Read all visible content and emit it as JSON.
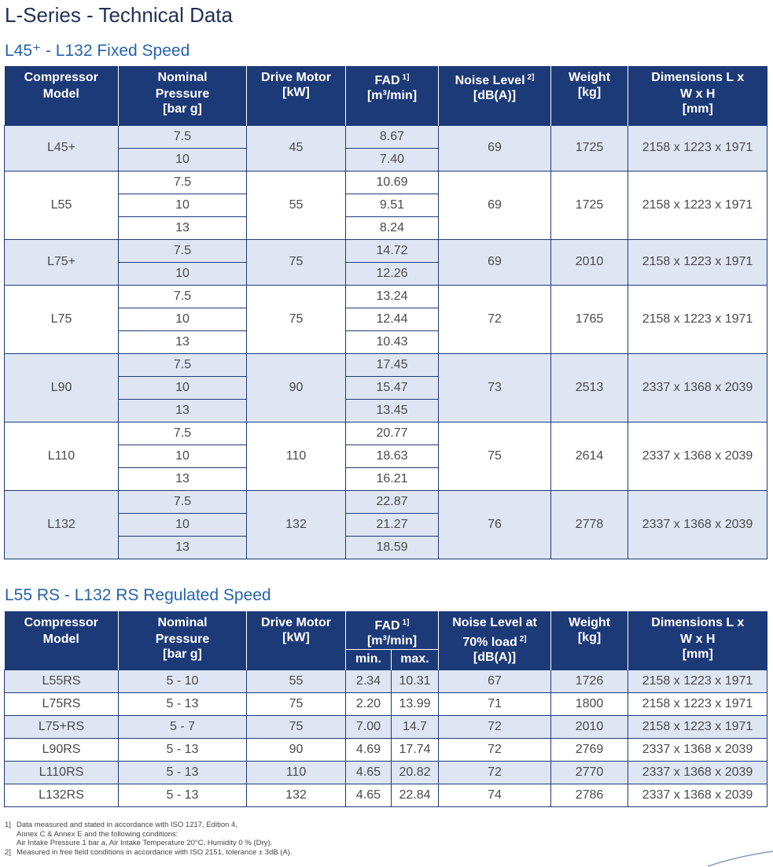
{
  "title": "L-Series - Technical Data",
  "fixed": {
    "title": "L45⁺ - L132 Fixed Speed",
    "headers": [
      {
        "label": "Compressor Model"
      },
      {
        "label": "Nominal Pressure",
        "unit": "[bar g]"
      },
      {
        "label": "Drive Motor",
        "unit": "[kW]"
      },
      {
        "label": "FAD",
        "note": "1]",
        "unit": "[m³/min]"
      },
      {
        "label": "Noise Level",
        "note": "2]",
        "unit": "[dB(A)]"
      },
      {
        "label": "Weight",
        "unit": "[kg]"
      },
      {
        "label": "Dimensions L x W x H",
        "unit": "[mm]"
      }
    ],
    "groups": [
      {
        "model": "L45+",
        "pressures": [
          "7.5",
          "10"
        ],
        "drive": "45",
        "fad": [
          "8.67",
          "7.40"
        ],
        "noise": "69",
        "weight": "1725",
        "dims": "2158 x 1223 x 1971"
      },
      {
        "model": "L55",
        "pressures": [
          "7.5",
          "10",
          "13"
        ],
        "drive": "55",
        "fad": [
          "10.69",
          "9.51",
          "8.24"
        ],
        "noise": "69",
        "weight": "1725",
        "dims": "2158 x 1223 x 1971"
      },
      {
        "model": "L75+",
        "pressures": [
          "7.5",
          "10"
        ],
        "drive": "75",
        "fad": [
          "14.72",
          "12.26"
        ],
        "noise": "69",
        "weight": "2010",
        "dims": "2158 x 1223 x 1971"
      },
      {
        "model": "L75",
        "pressures": [
          "7.5",
          "10",
          "13"
        ],
        "drive": "75",
        "fad": [
          "13.24",
          "12.44",
          "10.43"
        ],
        "noise": "72",
        "weight": "1765",
        "dims": "2158 x 1223 x 1971"
      },
      {
        "model": "L90",
        "pressures": [
          "7.5",
          "10",
          "13"
        ],
        "drive": "90",
        "fad": [
          "17.45",
          "15.47",
          "13.45"
        ],
        "noise": "73",
        "weight": "2513",
        "dims": "2337 x 1368 x 2039"
      },
      {
        "model": "L110",
        "pressures": [
          "7.5",
          "10",
          "13"
        ],
        "drive": "110",
        "fad": [
          "20.77",
          "18.63",
          "16.21"
        ],
        "noise": "75",
        "weight": "2614",
        "dims": "2337 x 1368 x 2039"
      },
      {
        "model": "L132",
        "pressures": [
          "7.5",
          "10",
          "13"
        ],
        "drive": "132",
        "fad": [
          "22.87",
          "21.27",
          "18.59"
        ],
        "noise": "76",
        "weight": "2778",
        "dims": "2337 x 1368 x 2039"
      }
    ]
  },
  "regulated": {
    "title": "L55 RS - L132 RS Regulated Speed",
    "headers": [
      {
        "label": "Compressor Model"
      },
      {
        "label": "Nominal Pressure",
        "unit": "[bar g]"
      },
      {
        "label": "Drive Motor",
        "unit": "[kW]"
      },
      {
        "label": "FAD",
        "note": "1]",
        "unit": "[m³/min]",
        "sub": [
          "min.",
          "max."
        ]
      },
      {
        "label": "Noise Level at 70% load",
        "note": "2]",
        "unit": "[dB(A)]"
      },
      {
        "label": "Weight",
        "unit": "[kg]"
      },
      {
        "label": "Dimensions L x W x H",
        "unit": "[mm]"
      }
    ],
    "rows": [
      {
        "model": "L55RS",
        "pressure": "5 - 10",
        "drive": "55",
        "fad_min": "2.34",
        "fad_max": "10.31",
        "noise": "67",
        "weight": "1726",
        "dims": "2158 x 1223 x 1971"
      },
      {
        "model": "L75RS",
        "pressure": "5 - 13",
        "drive": "75",
        "fad_min": "2.20",
        "fad_max": "13.99",
        "noise": "71",
        "weight": "1800",
        "dims": "2158 x 1223 x 1971"
      },
      {
        "model": "L75+RS",
        "pressure": "5 - 7",
        "drive": "75",
        "fad_min": "7.00",
        "fad_max": "14.7",
        "noise": "72",
        "weight": "2010",
        "dims": "2158 x 1223 x 1971"
      },
      {
        "model": "L90RS",
        "pressure": "5 - 13",
        "drive": "90",
        "fad_min": "4.69",
        "fad_max": "17.74",
        "noise": "72",
        "weight": "2769",
        "dims": "2337 x 1368 x 2039"
      },
      {
        "model": "L110RS",
        "pressure": "5 - 13",
        "drive": "110",
        "fad_min": "4.65",
        "fad_max": "20.82",
        "noise": "72",
        "weight": "2770",
        "dims": "2337 x 1368 x 2039"
      },
      {
        "model": "L132RS",
        "pressure": "5 - 13",
        "drive": "132",
        "fad_min": "4.65",
        "fad_max": "22.84",
        "noise": "74",
        "weight": "2786",
        "dims": "2337 x 1368 x 2039"
      }
    ]
  },
  "footnotes": [
    {
      "mark": "1]",
      "lines": [
        "Data measured and stated in accordance with ISO 1217, Edition 4,",
        "Annex C & Annex E and the following conditions:",
        "Air Intake Pressure 1 bar a, Air Intake Temperature 20°C, Humidity 0 % (Dry)."
      ]
    },
    {
      "mark": "2]",
      "lines": [
        "Measured in free field conditions in accordance with ISO 2151, tolerance ± 3dB (A)."
      ]
    }
  ]
}
